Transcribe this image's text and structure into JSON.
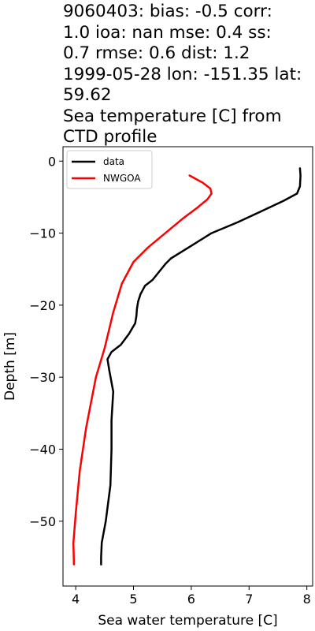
{
  "chart_data": {
    "type": "line",
    "title": [
      "9060403: bias: -0.5  corr:",
      "1.0  ioa: nan  mse: 0.4  ss:",
      "0.7  rmse: 0.6  dist: 1.2",
      "1999-05-28 lon: -151.35 lat:",
      "59.62",
      "Sea temperature [C] from",
      "CTD profile"
    ],
    "xlabel": "Sea water temperature [C]",
    "ylabel": "Depth [m]",
    "xlim": [
      3.78,
      8.1
    ],
    "ylim": [
      -59,
      2
    ],
    "xticks": [
      4,
      5,
      6,
      7,
      8
    ],
    "yticks": [
      0,
      -10,
      -20,
      -30,
      -40,
      -50
    ],
    "ytick_labels": [
      "0",
      "−10",
      "−20",
      "−30",
      "−40",
      "−50"
    ],
    "grid": false,
    "legend_position": "upper-left",
    "series": [
      {
        "name": "data",
        "color": "#000000",
        "points": [
          [
            7.88,
            -1
          ],
          [
            7.89,
            -2
          ],
          [
            7.88,
            -3.5
          ],
          [
            7.83,
            -4.5
          ],
          [
            7.6,
            -5.5
          ],
          [
            7.2,
            -7
          ],
          [
            6.8,
            -8.5
          ],
          [
            6.35,
            -10
          ],
          [
            6.05,
            -11.5
          ],
          [
            5.85,
            -12.5
          ],
          [
            5.65,
            -13.5
          ],
          [
            5.55,
            -14.3
          ],
          [
            5.45,
            -15.3
          ],
          [
            5.33,
            -16.5
          ],
          [
            5.2,
            -17.3
          ],
          [
            5.12,
            -18.5
          ],
          [
            5.08,
            -19.5
          ],
          [
            5.06,
            -20.5
          ],
          [
            5.05,
            -21.5
          ],
          [
            5.03,
            -22.5
          ],
          [
            4.92,
            -24
          ],
          [
            4.78,
            -25.5
          ],
          [
            4.62,
            -26.5
          ],
          [
            4.55,
            -27.5
          ],
          [
            4.58,
            -29
          ],
          [
            4.65,
            -32
          ],
          [
            4.62,
            -36
          ],
          [
            4.62,
            -40
          ],
          [
            4.6,
            -45
          ],
          [
            4.52,
            -50
          ],
          [
            4.45,
            -53
          ],
          [
            4.44,
            -55
          ],
          [
            4.44,
            -56
          ]
        ]
      },
      {
        "name": "NWGOA",
        "color": "#ff0000",
        "points": [
          [
            5.97,
            -2
          ],
          [
            6.2,
            -3
          ],
          [
            6.33,
            -3.8
          ],
          [
            6.35,
            -4.5
          ],
          [
            6.28,
            -5.3
          ],
          [
            6.1,
            -6.5
          ],
          [
            5.85,
            -8
          ],
          [
            5.55,
            -10
          ],
          [
            5.25,
            -12
          ],
          [
            5.0,
            -14
          ],
          [
            4.8,
            -17
          ],
          [
            4.65,
            -21
          ],
          [
            4.5,
            -26
          ],
          [
            4.35,
            -30
          ],
          [
            4.18,
            -37
          ],
          [
            4.07,
            -43
          ],
          [
            4.0,
            -49
          ],
          [
            3.96,
            -53
          ],
          [
            3.97,
            -56
          ]
        ]
      }
    ]
  }
}
